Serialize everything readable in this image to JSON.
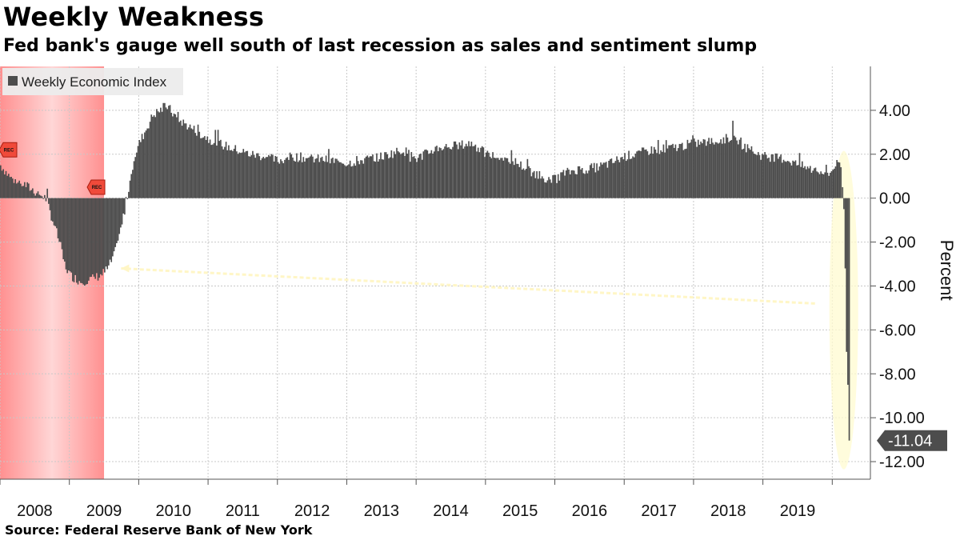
{
  "header": {
    "title": "Weekly Weakness",
    "subtitle": "Fed bank's gauge well south of last recession as sales and sentiment slump"
  },
  "footer": {
    "source_label": "Source:",
    "source_text": "Federal Reserve Bank of New York"
  },
  "colors": {
    "bar": "#4d4d4d",
    "recession_shade": "#ff8a8a",
    "highlight": "#fffbd0",
    "marker": "#f04a3a",
    "callout": "#4d4d4d",
    "grid": "#c8c8c8"
  },
  "chart_data": {
    "type": "bar",
    "legend": {
      "label": "Weekly Economic Index",
      "position": "top-left"
    },
    "ylabel": "Percent",
    "ylim": [
      -12.8,
      6.0
    ],
    "yticks": [
      4.0,
      2.0,
      0.0,
      -2.0,
      -4.0,
      -6.0,
      -8.0,
      -10.0,
      -12.0
    ],
    "ytick_labels": [
      "4.00",
      "2.00",
      "0.00",
      "-2.00",
      "-4.00",
      "-6.00",
      "-8.00",
      "-10.00",
      "-12.00"
    ],
    "xlim": [
      2008.0,
      2020.55
    ],
    "x_categories": [
      "2008",
      "2009",
      "2010",
      "2011",
      "2012",
      "2013",
      "2014",
      "2015",
      "2016",
      "2017",
      "2018",
      "2019"
    ],
    "grid": true,
    "recession": {
      "start": 2008.0,
      "end": 2009.5,
      "marker_label": "REC"
    },
    "series": [
      {
        "name": "Weekly Economic Index",
        "anchors": [
          [
            2008.0,
            1.5
          ],
          [
            2008.15,
            0.9
          ],
          [
            2008.35,
            0.6
          ],
          [
            2008.5,
            0.3
          ],
          [
            2008.65,
            0.0
          ],
          [
            2008.75,
            -1.0
          ],
          [
            2008.85,
            -2.0
          ],
          [
            2008.92,
            -3.0
          ],
          [
            2009.0,
            -3.5
          ],
          [
            2009.15,
            -3.8
          ],
          [
            2009.3,
            -3.7
          ],
          [
            2009.45,
            -3.5
          ],
          [
            2009.55,
            -3.2
          ],
          [
            2009.65,
            -2.5
          ],
          [
            2009.75,
            -1.2
          ],
          [
            2009.85,
            0.5
          ],
          [
            2009.92,
            1.8
          ],
          [
            2010.0,
            2.5
          ],
          [
            2010.2,
            3.8
          ],
          [
            2010.4,
            4.2
          ],
          [
            2010.55,
            3.6
          ],
          [
            2010.8,
            3.1
          ],
          [
            2011.0,
            2.7
          ],
          [
            2011.3,
            2.3
          ],
          [
            2011.6,
            2.0
          ],
          [
            2011.8,
            1.9
          ],
          [
            2012.0,
            1.7
          ],
          [
            2012.2,
            1.9
          ],
          [
            2012.5,
            1.8
          ],
          [
            2012.8,
            1.7
          ],
          [
            2013.0,
            1.6
          ],
          [
            2013.5,
            1.9
          ],
          [
            2013.8,
            2.2
          ],
          [
            2014.0,
            1.8
          ],
          [
            2014.3,
            2.3
          ],
          [
            2014.6,
            2.4
          ],
          [
            2014.8,
            2.5
          ],
          [
            2015.0,
            2.0
          ],
          [
            2015.4,
            1.7
          ],
          [
            2015.6,
            1.3
          ],
          [
            2015.8,
            1.0
          ],
          [
            2015.95,
            0.8
          ],
          [
            2016.1,
            1.1
          ],
          [
            2016.3,
            1.3
          ],
          [
            2016.6,
            1.4
          ],
          [
            2016.8,
            1.6
          ],
          [
            2017.0,
            1.9
          ],
          [
            2017.4,
            2.2
          ],
          [
            2017.7,
            2.3
          ],
          [
            2018.0,
            2.5
          ],
          [
            2018.35,
            2.6
          ],
          [
            2018.55,
            2.8
          ],
          [
            2018.75,
            2.3
          ],
          [
            2019.0,
            1.9
          ],
          [
            2019.3,
            1.8
          ],
          [
            2019.6,
            1.4
          ],
          [
            2019.8,
            1.2
          ],
          [
            2019.95,
            1.1
          ],
          [
            2020.05,
            1.6
          ],
          [
            2020.12,
            1.3
          ]
        ],
        "final_weeks": [
          0.5,
          -0.5,
          -3.2,
          -7.0,
          -8.5,
          -11.04
        ],
        "latest_value": -11.04,
        "latest_label": "-11.04"
      }
    ]
  }
}
